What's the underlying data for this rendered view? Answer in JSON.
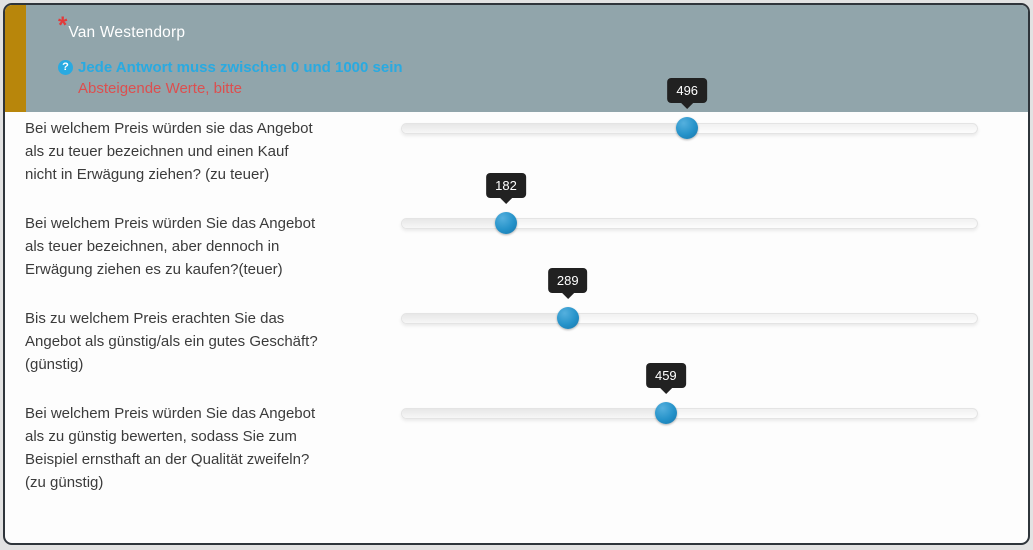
{
  "header": {
    "required_marker": "*",
    "title": "Van Westendorp",
    "help_glyph": "?",
    "instruction": "Jede Antwort muss zwischen 0 und 1000 sein",
    "validation_message": "Absteigende Werte, bitte"
  },
  "slider": {
    "min": 0,
    "max": 1000
  },
  "questions": [
    {
      "text": "Bei welchem Preis würden sie das Angebot\nals zu teuer bezeichnen und einen Kauf\nnicht in Erwägung ziehen? (zu teuer)",
      "value": "496"
    },
    {
      "text": "Bei welchem Preis würden Sie das Angebot\nals teuer bezeichnen, aber dennoch in\nErwägung ziehen es zu kaufen?(teuer)",
      "value": "182"
    },
    {
      "text": "Bis zu welchem Preis erachten Sie das\nAngebot als günstig/als ein gutes Geschäft?\n(günstig)",
      "value": "289"
    },
    {
      "text": "Bei welchem Preis würden Sie das Angebot\nals zu günstig bewerten, sodass Sie zum\nBeispiel ernsthaft an der Qualität zweifeln?\n(zu günstig)",
      "value": "459"
    }
  ],
  "colors": {
    "header_background": "#91a5ab",
    "accent_bar": "#b8860b",
    "instruction_blue": "#29aae1",
    "validation_red": "#dc4f4f",
    "handle_blue": "#2592c9",
    "tooltip_background": "#212121",
    "container_border": "#2f353b"
  }
}
